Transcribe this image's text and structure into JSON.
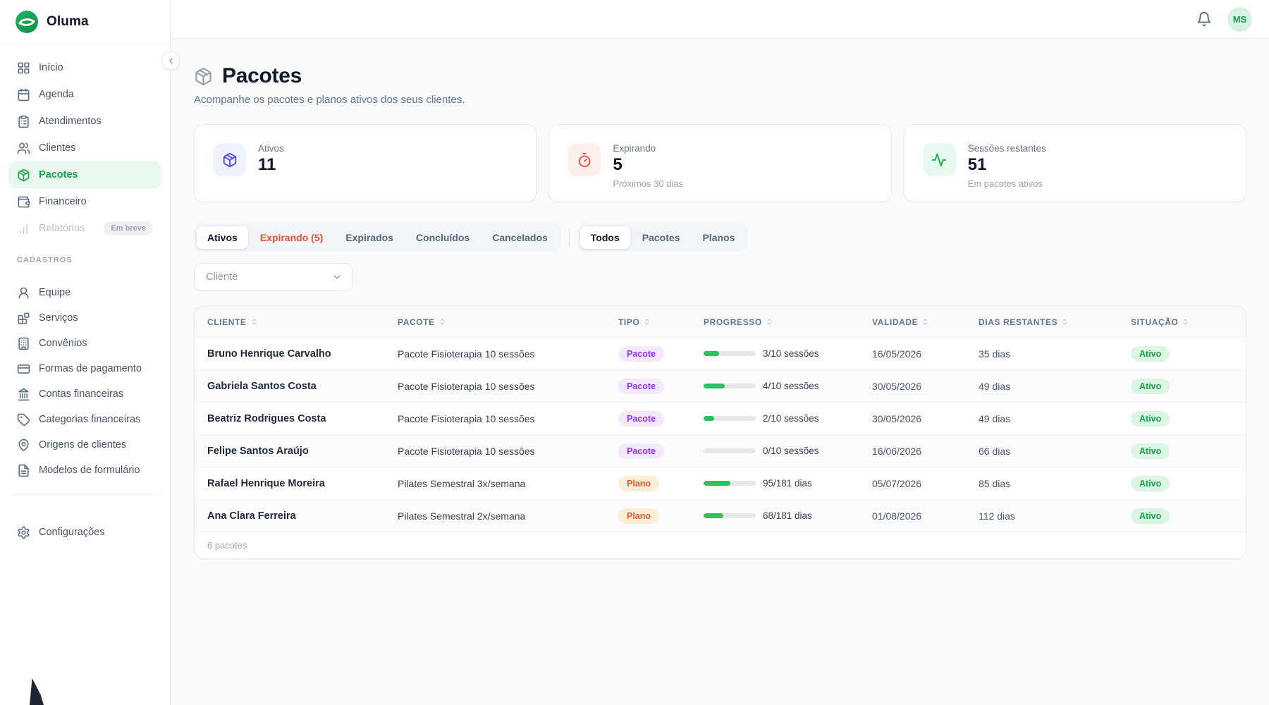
{
  "brand": {
    "name": "Oluma"
  },
  "topbar": {
    "avatar_initials": "MS"
  },
  "sidebar": {
    "main_items": [
      {
        "label": "Início",
        "icon": "grid-icon"
      },
      {
        "label": "Agenda",
        "icon": "calendar-icon"
      },
      {
        "label": "Atendimentos",
        "icon": "clipboard-icon"
      },
      {
        "label": "Clientes",
        "icon": "users-icon"
      },
      {
        "label": "Pacotes",
        "icon": "package-icon",
        "active": true
      },
      {
        "label": "Financeiro",
        "icon": "wallet-icon"
      },
      {
        "label": "Relatórios",
        "icon": "bar-chart-icon",
        "disabled": true,
        "badge": "Em breve"
      }
    ],
    "cadastros_label": "CADASTROS",
    "cadastros_items": [
      {
        "label": "Equipe",
        "icon": "person-icon"
      },
      {
        "label": "Serviços",
        "icon": "blocks-icon"
      },
      {
        "label": "Convênios",
        "icon": "building-icon"
      },
      {
        "label": "Formas de pagamento",
        "icon": "credit-card-icon"
      },
      {
        "label": "Contas financeiras",
        "icon": "bank-icon"
      },
      {
        "label": "Categorias financeiras",
        "icon": "tag-icon"
      },
      {
        "label": "Origens de clientes",
        "icon": "map-pin-icon"
      },
      {
        "label": "Modelos de formulário",
        "icon": "file-text-icon"
      }
    ],
    "settings_label": "Configurações"
  },
  "page": {
    "title": "Pacotes",
    "subtitle": "Acompanhe os pacotes e planos ativos dos seus clientes."
  },
  "stats": [
    {
      "label": "Ativos",
      "value": "11",
      "sub": "",
      "icon": "package-icon",
      "accent": "#4f46e5"
    },
    {
      "label": "Expirando",
      "value": "5",
      "sub": "Próximos 30 dias",
      "icon": "timer-icon",
      "accent": "#ee4b2e"
    },
    {
      "label": "Sessões restantes",
      "value": "51",
      "sub": "Em pacotes ativos",
      "icon": "activity-icon",
      "accent": "#16a34a"
    }
  ],
  "status_tabs": [
    {
      "label": "Ativos",
      "active": true
    },
    {
      "label": "Expirando (5)",
      "accent": true
    },
    {
      "label": "Expirados"
    },
    {
      "label": "Concluídos"
    },
    {
      "label": "Cancelados"
    }
  ],
  "type_tabs": [
    {
      "label": "Todos",
      "active": true
    },
    {
      "label": "Pacotes"
    },
    {
      "label": "Planos"
    }
  ],
  "client_filter": {
    "placeholder": "Cliente"
  },
  "table": {
    "columns": [
      "CLIENTE",
      "PACOTE",
      "TIPO",
      "PROGRESSO",
      "VALIDADE",
      "DIAS RESTANTES",
      "SITUAÇÃO"
    ],
    "rows": [
      {
        "client": "Bruno Henrique Carvalho",
        "package": "Pacote Fisioterapia 10 sessões",
        "type": "Pacote",
        "type_color": "purple",
        "progress_label": "3/10 sessões",
        "progress_pct": 30,
        "validade": "16/05/2026",
        "dias": "35 dias",
        "situacao": "Ativo",
        "situacao_color": "green"
      },
      {
        "client": "Gabriela Santos Costa",
        "package": "Pacote Fisioterapia 10 sessões",
        "type": "Pacote",
        "type_color": "purple",
        "progress_label": "4/10 sessões",
        "progress_pct": 40,
        "validade": "30/05/2026",
        "dias": "49 dias",
        "situacao": "Ativo",
        "situacao_color": "green"
      },
      {
        "client": "Beatriz Rodrigues Costa",
        "package": "Pacote Fisioterapia 10 sessões",
        "type": "Pacote",
        "type_color": "purple",
        "progress_label": "2/10 sessões",
        "progress_pct": 20,
        "validade": "30/05/2026",
        "dias": "49 dias",
        "situacao": "Ativo",
        "situacao_color": "green"
      },
      {
        "client": "Felipe Santos Araújo",
        "package": "Pacote Fisioterapia 10 sessões",
        "type": "Pacote",
        "type_color": "purple",
        "progress_label": "0/10 sessões",
        "progress_pct": 0,
        "validade": "16/06/2026",
        "dias": "66 dias",
        "situacao": "Ativo",
        "situacao_color": "green"
      },
      {
        "client": "Rafael Henrique Moreira",
        "package": "Pilates Semestral 3x/semana",
        "type": "Plano",
        "type_color": "orange",
        "progress_label": "95/181 dias",
        "progress_pct": 52,
        "validade": "05/07/2026",
        "dias": "85 dias",
        "situacao": "Ativo",
        "situacao_color": "green"
      },
      {
        "client": "Ana Clara Ferreira",
        "package": "Pilates Semestral 2x/semana",
        "type": "Plano",
        "type_color": "orange",
        "progress_label": "68/181 dias",
        "progress_pct": 38,
        "validade": "01/08/2026",
        "dias": "112 dias",
        "situacao": "Ativo",
        "situacao_color": "green"
      }
    ],
    "footer": "6 pacotes"
  }
}
